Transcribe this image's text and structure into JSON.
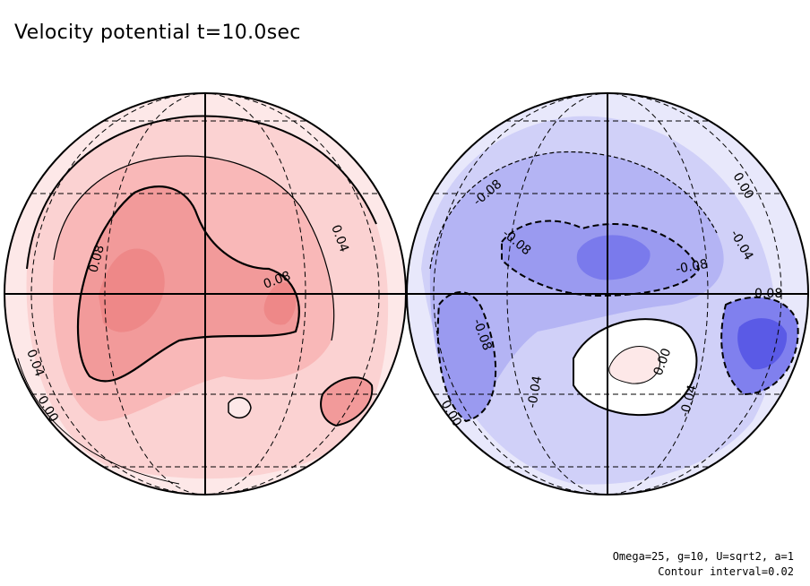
{
  "title": "Velocity potential t=10.0sec",
  "footer": {
    "line1": "Omega=25, g=10, U=sqrt2, a=1",
    "line2": "Contour interval=0.02"
  },
  "colors": {
    "positive_light": "#fde8e8",
    "positive_mid": "#f9b8b8",
    "positive_strong": "#f08080",
    "negative_light": "#e8e8fb",
    "negative_mid": "#b4b4f4",
    "negative_strong": "#5858e8"
  },
  "left_hemisphere": {
    "contour_labels": [
      "0.08",
      "0.08",
      "0.04",
      "0.04",
      "0.00"
    ]
  },
  "right_hemisphere": {
    "contour_labels": [
      "-0.08",
      "-0.08",
      "-0.08",
      "0.00",
      "-0.04",
      "-0.08",
      "-0.08",
      "-0.04",
      "0.00",
      "-0.04",
      "0.00"
    ]
  }
}
